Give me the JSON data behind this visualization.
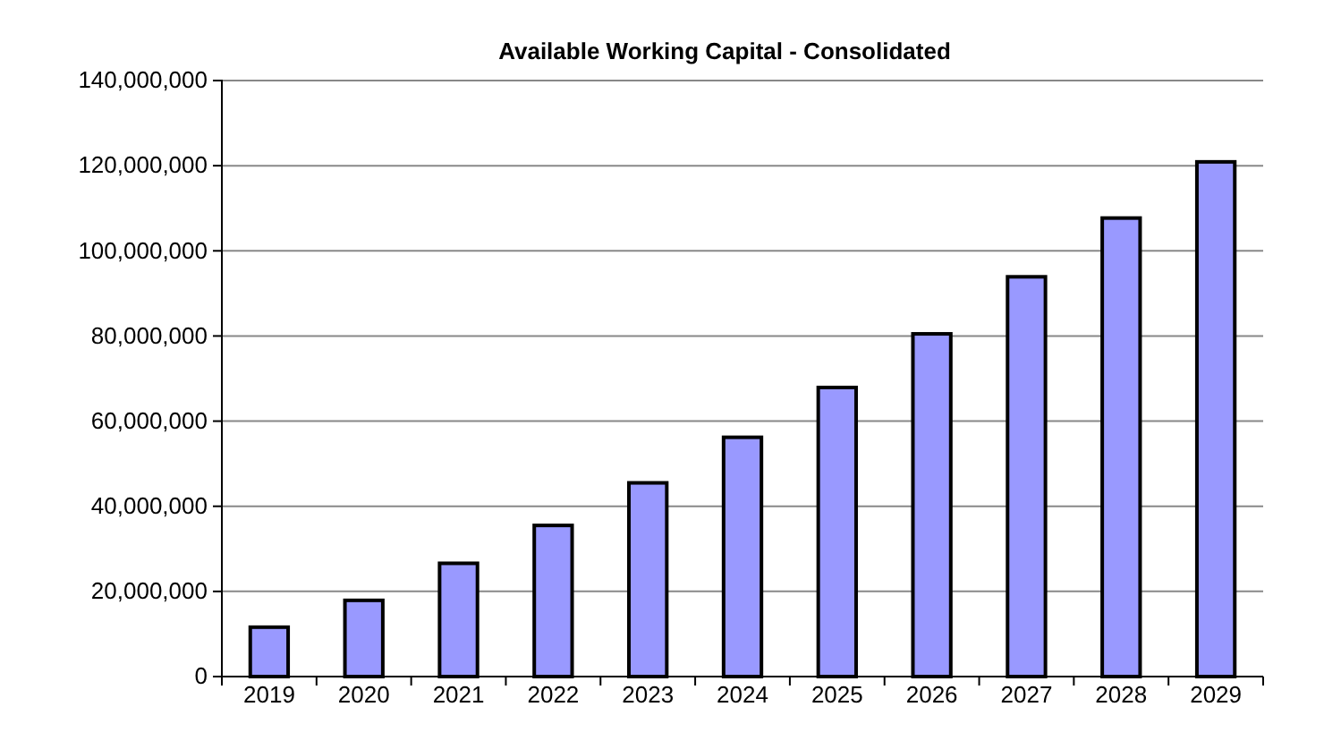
{
  "chart_data": {
    "type": "bar",
    "title": "Available Working Capital - Consolidated",
    "categories": [
      "2019",
      "2020",
      "2021",
      "2022",
      "2023",
      "2024",
      "2025",
      "2026",
      "2027",
      "2028",
      "2029"
    ],
    "values": [
      11600000,
      17900000,
      26600000,
      35500000,
      45500000,
      56200000,
      67900000,
      80500000,
      93900000,
      107700000,
      120900000
    ],
    "color": "#9999ff",
    "ylim": [
      0,
      140000000
    ],
    "yticks": [
      {
        "value": 0,
        "label": "0"
      },
      {
        "value": 20000000,
        "label": "20,000,000"
      },
      {
        "value": 40000000,
        "label": "40,000,000"
      },
      {
        "value": 60000000,
        "label": "60,000,000"
      },
      {
        "value": 80000000,
        "label": "80,000,000"
      },
      {
        "value": 100000000,
        "label": "100,000,000"
      },
      {
        "value": 120000000,
        "label": "120,000,000"
      },
      {
        "value": 140000000,
        "label": "140,000,000"
      }
    ],
    "grid": "y"
  }
}
